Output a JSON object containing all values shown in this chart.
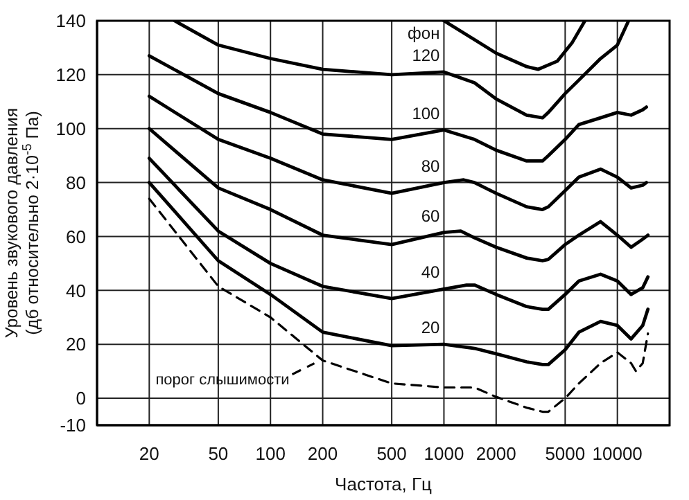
{
  "chart_data": {
    "type": "line",
    "xlabel": "Частота, Гц",
    "ylabel": "Уровень звукового давления\n(дб относительно 2·10$^{-5}$ Па)",
    "legend_title": "фон",
    "log": "x",
    "grid": true,
    "marker": "none",
    "xlim": [
      10,
      20000
    ],
    "ylim": [
      -10,
      140
    ],
    "xticks": [
      20,
      50,
      100,
      200,
      500,
      1000,
      2000,
      5000,
      10000
    ],
    "yticks": [
      -10,
      0,
      20,
      40,
      60,
      80,
      100,
      120,
      140
    ],
    "series": [
      {
        "color": "#000000",
        "x": [
          1000,
          1500,
          2000,
          3000,
          3500,
          4500,
          5500,
          6500
        ],
        "values": [
          140,
          133,
          128,
          123,
          122,
          125,
          132,
          140
        ]
      },
      {
        "name": "120",
        "color": "#000000",
        "x": [
          28,
          50,
          100,
          200,
          500,
          1000,
          1500,
          2000,
          3000,
          3700,
          4000,
          5000,
          6000,
          8000,
          10000,
          11600
        ],
        "values": [
          140,
          131,
          126,
          122,
          120,
          121,
          117,
          111,
          105,
          104,
          106,
          113,
          118,
          126,
          131,
          140
        ]
      },
      {
        "name": "100",
        "color": "#000000",
        "x": [
          20,
          50,
          100,
          200,
          500,
          1000,
          1500,
          2000,
          3000,
          3700,
          4000,
          5000,
          6000,
          8000,
          10000,
          12000,
          14000,
          14700
        ],
        "values": [
          127,
          113,
          106,
          98,
          96,
          99.5,
          96,
          92,
          88,
          88,
          90,
          96,
          101.5,
          104,
          106,
          105,
          107,
          108
        ]
      },
      {
        "name": "80",
        "color": "#000000",
        "x": [
          20,
          50,
          100,
          200,
          500,
          1000,
          1300,
          1500,
          2000,
          3000,
          3700,
          4000,
          5000,
          6000,
          8000,
          10000,
          12000,
          14000,
          14700
        ],
        "values": [
          112,
          96,
          89,
          81,
          76,
          80,
          81,
          80,
          76,
          71,
          70,
          71,
          77,
          82,
          85,
          82,
          78,
          79,
          80
        ]
      },
      {
        "name": "60",
        "color": "#000000",
        "x": [
          20,
          50,
          100,
          200,
          500,
          1000,
          1250,
          1500,
          2000,
          3000,
          3700,
          4000,
          5000,
          6000,
          8000,
          10000,
          12000,
          14000,
          15000
        ],
        "values": [
          100,
          78,
          70,
          60.5,
          57,
          61.5,
          62,
          59.5,
          56,
          52,
          51,
          51.5,
          57,
          60.5,
          65.5,
          60.5,
          56,
          59,
          60.5
        ]
      },
      {
        "name": "40",
        "color": "#000000",
        "x": [
          20,
          50,
          100,
          200,
          500,
          1000,
          1350,
          1500,
          2000,
          3000,
          3700,
          4000,
          5000,
          6000,
          8000,
          10000,
          12000,
          14000,
          15000
        ],
        "values": [
          89,
          62,
          50,
          41.5,
          37,
          40.5,
          42,
          42,
          38.5,
          34,
          33,
          33,
          38.5,
          43.5,
          46,
          43.5,
          38.5,
          41,
          45
        ]
      },
      {
        "name": "20",
        "color": "#000000",
        "x": [
          20,
          50,
          100,
          200,
          500,
          1000,
          1500,
          2000,
          3000,
          3700,
          4000,
          5000,
          6000,
          8000,
          10000,
          12000,
          14000,
          15000
        ],
        "values": [
          80,
          51,
          38.5,
          24.5,
          19.5,
          20,
          18.5,
          16.5,
          13.5,
          12.5,
          12.5,
          18,
          24.5,
          28.5,
          27,
          22,
          27,
          33
        ]
      },
      {
        "name": "порог слышимости",
        "color": "#000000",
        "line_style": "dashed",
        "x": [
          20,
          50,
          100,
          200,
          500,
          1000,
          1500,
          2000,
          3000,
          3700,
          4000,
          5000,
          6000,
          8000,
          10000,
          12000,
          12800,
          14000,
          15000
        ],
        "values": [
          74,
          41.5,
          30,
          14,
          5.5,
          4,
          4,
          0.5,
          -3.5,
          -5,
          -5,
          0,
          5.5,
          13,
          17,
          13,
          10,
          13,
          24
        ]
      }
    ]
  }
}
